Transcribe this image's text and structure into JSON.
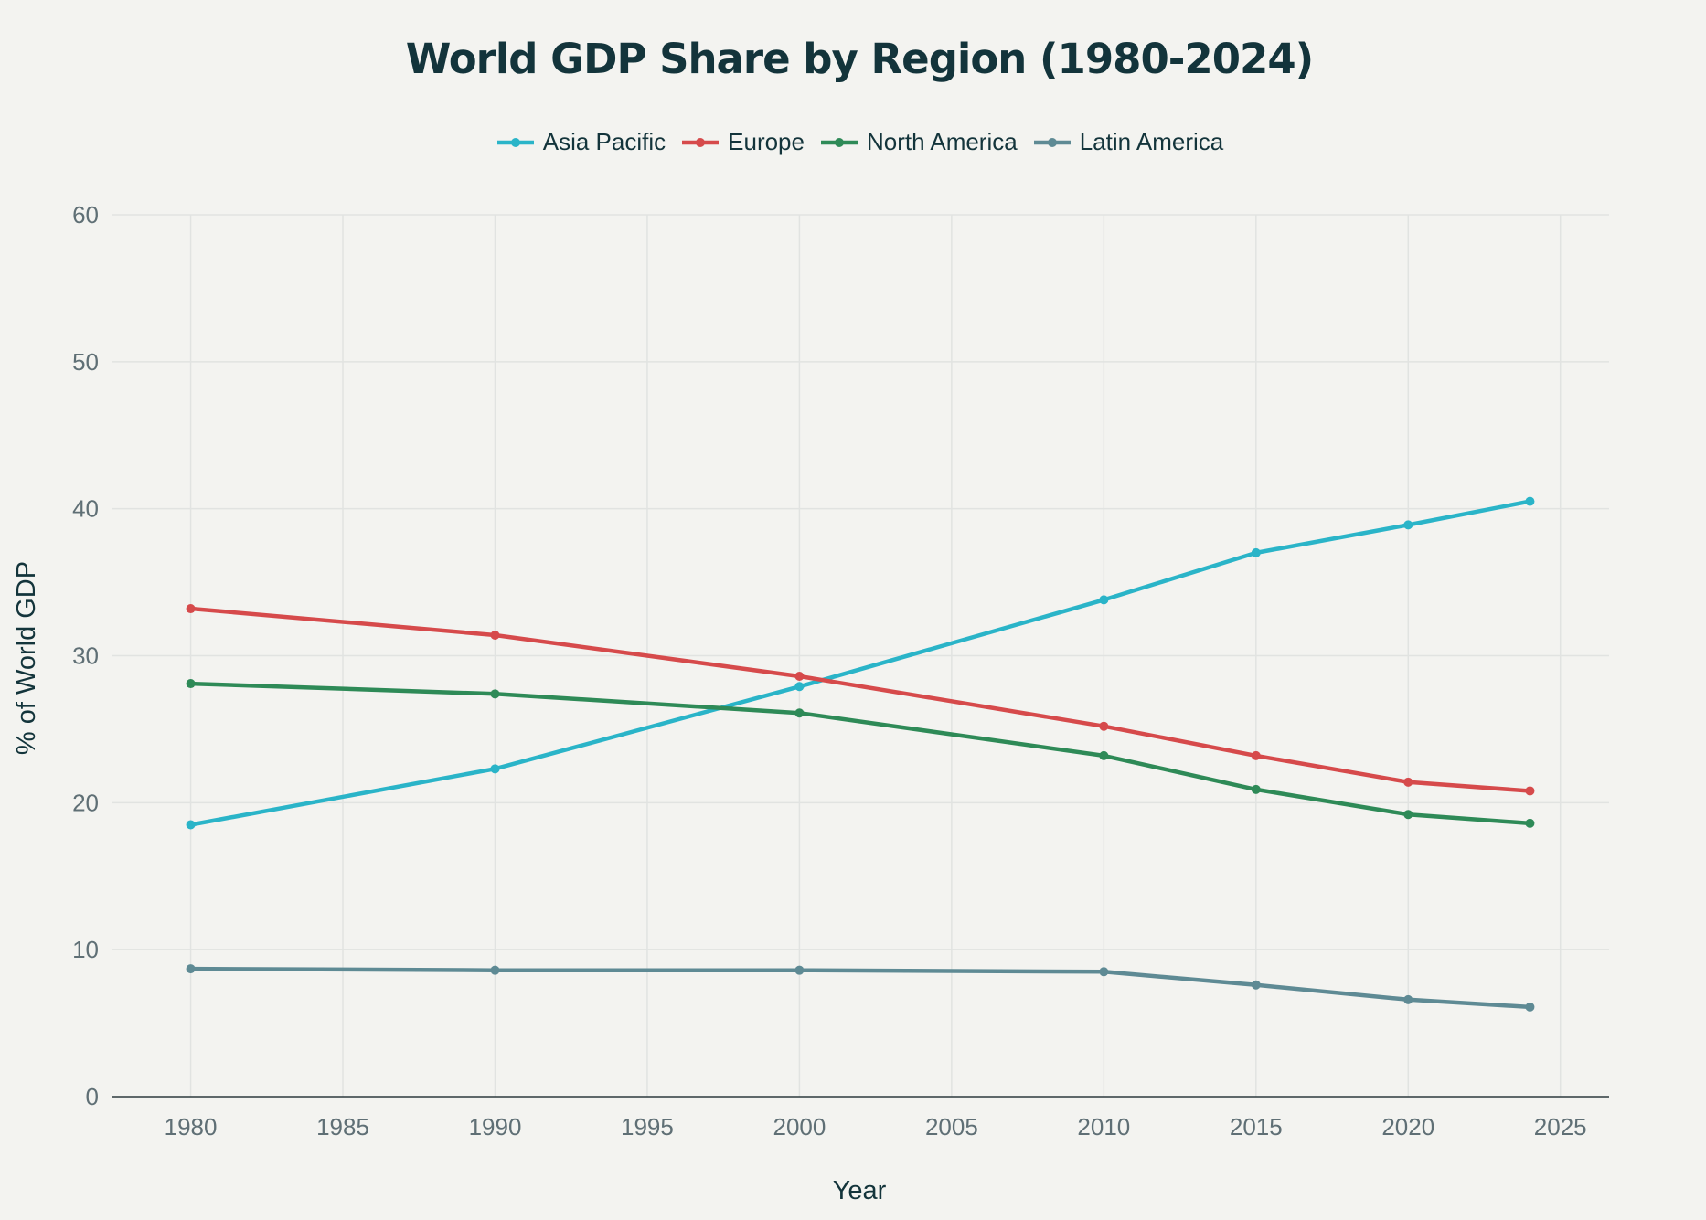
{
  "chart_data": {
    "type": "line",
    "title": "World GDP Share by Region (1980-2024)",
    "xlabel": "Year",
    "ylabel": "% of World GDP",
    "x": [
      1980,
      1990,
      2000,
      2010,
      2015,
      2020,
      2024
    ],
    "xlim": [
      1977.4,
      2026.6
    ],
    "ylim": [
      0,
      60
    ],
    "xticks": [
      1980,
      1985,
      1990,
      1995,
      2000,
      2005,
      2010,
      2015,
      2020,
      2025
    ],
    "yticks": [
      0,
      10,
      20,
      30,
      40,
      50,
      60
    ],
    "grid": true,
    "legend_position": "top-center",
    "series": [
      {
        "name": "Asia Pacific",
        "color": "#2ab4c8",
        "values": [
          18.5,
          22.3,
          27.9,
          33.8,
          37.0,
          38.9,
          40.5
        ]
      },
      {
        "name": "Europe",
        "color": "#d64a4b",
        "values": [
          33.2,
          31.4,
          28.6,
          25.2,
          23.2,
          21.4,
          20.8
        ]
      },
      {
        "name": "North America",
        "color": "#2e8a57",
        "values": [
          28.1,
          27.4,
          26.1,
          23.2,
          20.9,
          19.2,
          18.6
        ]
      },
      {
        "name": "Latin America",
        "color": "#5e8a94",
        "values": [
          8.7,
          8.6,
          8.6,
          8.5,
          7.6,
          6.6,
          6.1
        ]
      }
    ]
  }
}
